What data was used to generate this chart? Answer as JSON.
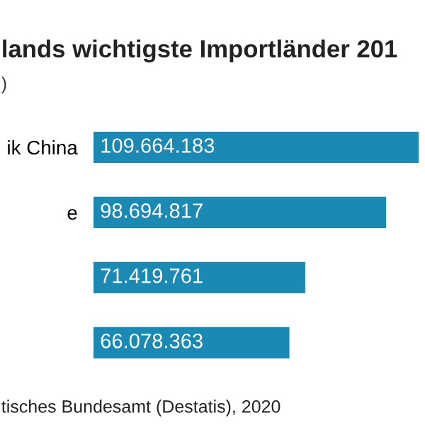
{
  "chart_data": {
    "type": "bar",
    "orientation": "horizontal",
    "title": "lands wichtigste Importländer 201",
    "subtitle": ")",
    "categories": [
      "ik China",
      "e",
      null,
      null
    ],
    "values": [
      109664183,
      98694817,
      71419761,
      66078363
    ],
    "color": "#1a8ab5",
    "value_labels": [
      "109.664.183",
      "98.694.817",
      "71.419.761",
      "66.078.363"
    ],
    "annotations": [
      "tisches Bundesamt (Destatis), 2020"
    ]
  }
}
